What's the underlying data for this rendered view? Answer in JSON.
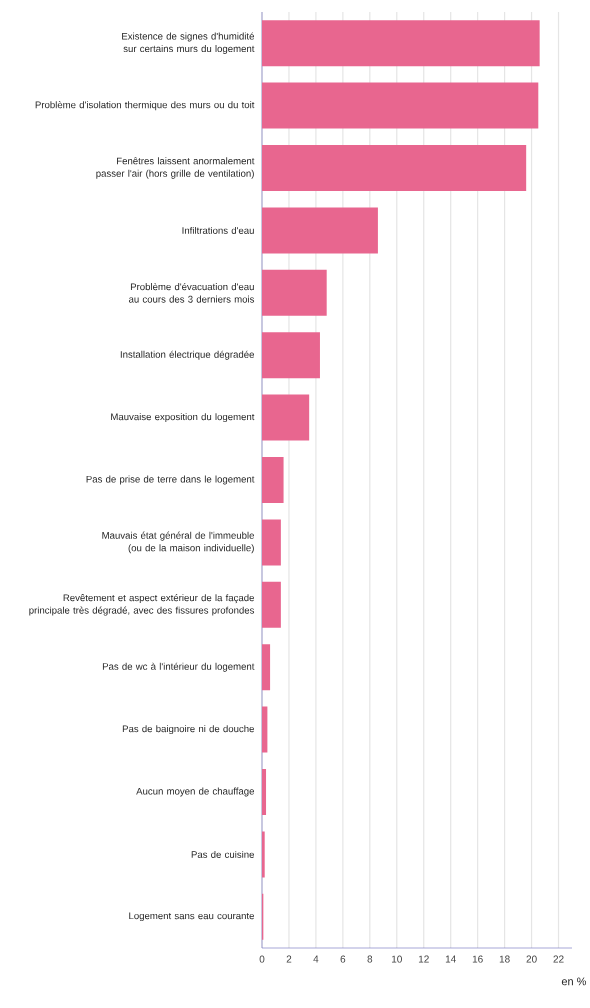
{
  "chart_data": {
    "type": "bar",
    "orientation": "horizontal",
    "categories": [
      "Existence de signes d'humidité sur certains murs du logement",
      "Problème d'isolation thermique des murs ou du toit",
      "Fenêtres laissent anormalement passer l'air (hors grille de ventilation)",
      "Infiltrations d'eau",
      "Problème d'évacuation d'eau au cours des 3 derniers mois",
      "Installation électrique dégradée",
      "Mauvaise exposition du logement",
      "Pas de prise de terre dans le logement",
      "Mauvais état général de l'immeuble (ou de la maison individuelle)",
      "Revêtement et aspect extérieur de la façade principale très dégradé, avec des fissures profondes",
      "Pas de wc à l'intérieur du logement",
      "Pas de baignoire ni de douche",
      "Aucun moyen de chauffage",
      "Pas de cuisine",
      "Logement sans eau courante"
    ],
    "values": [
      20.6,
      20.5,
      19.6,
      8.6,
      4.8,
      4.3,
      3.5,
      1.6,
      1.4,
      1.4,
      0.6,
      0.4,
      0.3,
      0.2,
      0.1
    ],
    "color": "#e8668f",
    "xlim": [
      0,
      23
    ],
    "xticks": [
      0,
      2,
      4,
      6,
      8,
      10,
      12,
      14,
      16,
      18,
      20,
      22
    ],
    "xlabel": "en %",
    "grid": "x"
  }
}
